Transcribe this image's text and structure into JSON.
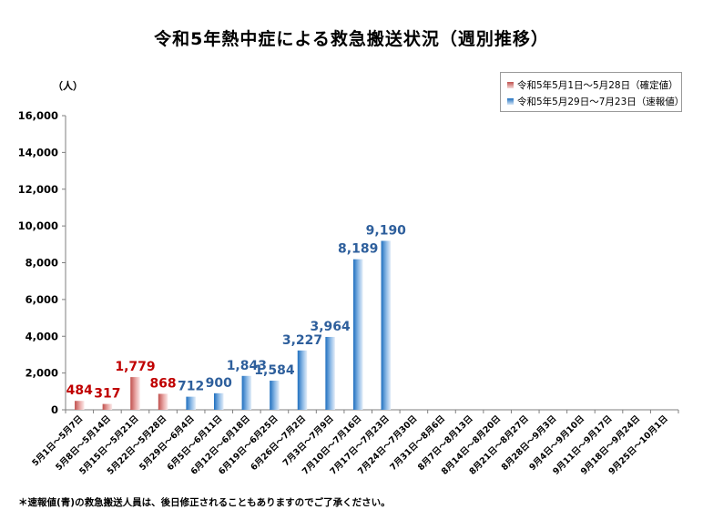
{
  "chart_data": {
    "type": "bar",
    "title": "令和5年熱中症による救急搬送状況（週別推移）",
    "ylabel": "（人）",
    "ylim": [
      0,
      16000
    ],
    "yticks": [
      "0",
      "2,000",
      "4,000",
      "6,000",
      "8,000",
      "10,000",
      "12,000",
      "14,000",
      "16,000"
    ],
    "grid": false,
    "legend_position": "top-right",
    "categories": [
      "5月1日～5月7日",
      "5月8日～5月14日",
      "5月15日～5月21日",
      "5月22日～5月28日",
      "5月29日～6月4日",
      "6月5日～6月11日",
      "6月12日～6月18日",
      "6月19日～6月25日",
      "6月26日～7月2日",
      "7月3日～7月9日",
      "7月10日～7月16日",
      "7月17日～7月23日",
      "7月24日～7月30日",
      "7月31日～8月6日",
      "8月7日～8月13日",
      "8月14日～8月20日",
      "8月21日～8月27日",
      "8月28日～9月3日",
      "9月4日～9月10日",
      "9月11日～9月17日",
      "9月18日～9月24日",
      "9月25日～10月1日"
    ],
    "series": [
      {
        "name": "令和5年5月1日～5月28日（確定値）",
        "color": "#c0504d",
        "values": [
          484,
          317,
          1779,
          868,
          null,
          null,
          null,
          null,
          null,
          null,
          null,
          null,
          null,
          null,
          null,
          null,
          null,
          null,
          null,
          null,
          null,
          null
        ],
        "labels": [
          "484",
          "317",
          "1,779",
          "868"
        ]
      },
      {
        "name": "令和5年5月29日～7月23日（速報値）",
        "color": "#1f6fbf",
        "values": [
          null,
          null,
          null,
          null,
          712,
          900,
          1843,
          1584,
          3227,
          3964,
          8189,
          9190,
          null,
          null,
          null,
          null,
          null,
          null,
          null,
          null,
          null,
          null
        ],
        "labels": [
          "712",
          "900",
          "1,843",
          "1,584",
          "3,227",
          "3,964",
          "8,189",
          "9,190"
        ]
      }
    ],
    "footnote": "＊速報値(青)の救急搬送人員は、後日修正されることもありますのでご了承ください。"
  }
}
